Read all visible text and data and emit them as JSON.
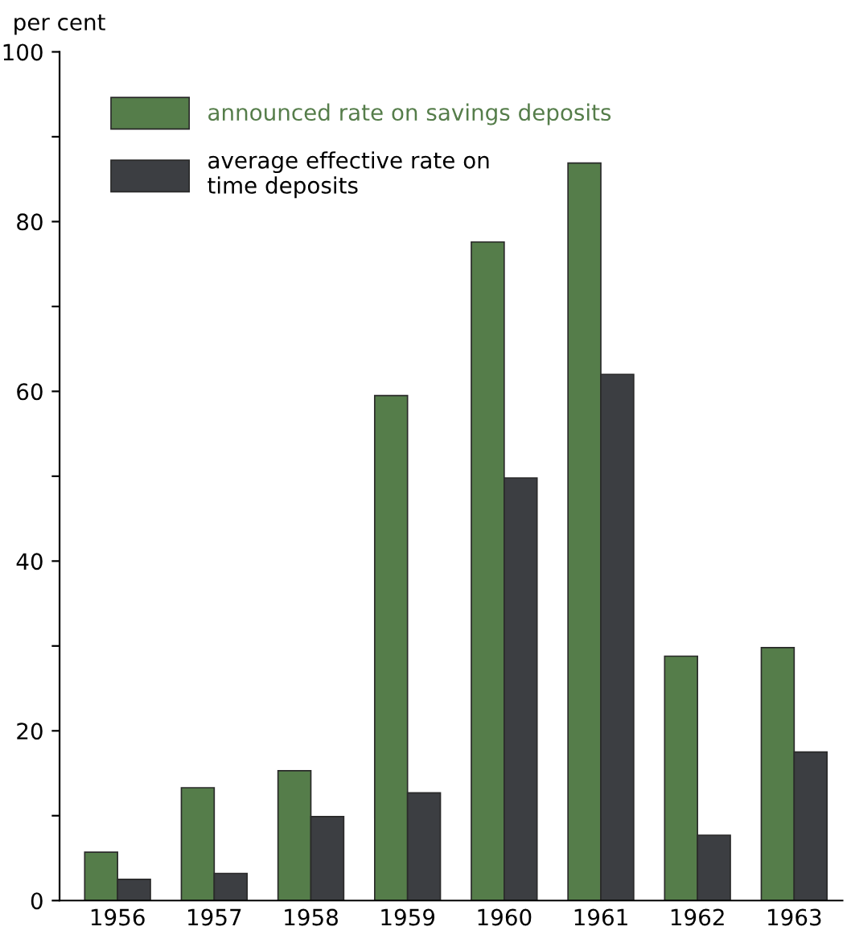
{
  "chart_data": {
    "type": "bar",
    "ylabel": "per cent",
    "categories": [
      "1956",
      "1957",
      "1958",
      "1959",
      "1960",
      "1961",
      "1962",
      "1963"
    ],
    "series": [
      {
        "name": "announced rate on savings deposits",
        "color": "#557d4a",
        "values": [
          5.7,
          13.3,
          15.3,
          59.5,
          77.6,
          86.9,
          28.8,
          29.8
        ]
      },
      {
        "name": "average effective rate on\ntime deposits",
        "color": "#3c3e42",
        "values": [
          2.5,
          3.2,
          9.9,
          12.7,
          49.8,
          62.0,
          7.7,
          17.5
        ]
      }
    ],
    "ylim": [
      0,
      100
    ],
    "yticks": [
      0,
      {
        "value": 10,
        "label": null
      },
      20,
      {
        "value": 30,
        "label": null
      },
      40,
      {
        "value": 50,
        "label": null
      },
      60,
      {
        "value": 70,
        "label": null
      },
      80,
      {
        "value": 90,
        "label": null
      },
      100
    ],
    "grid": false,
    "legend": "top left"
  }
}
